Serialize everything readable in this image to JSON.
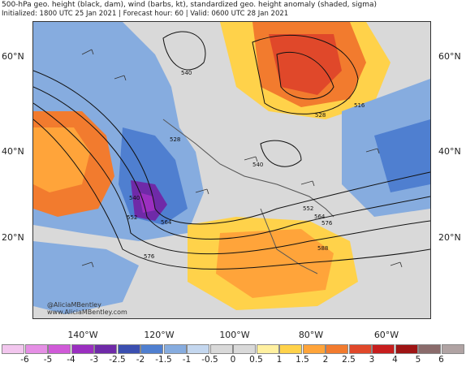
{
  "header": {
    "title": "500-hPa geo. height (black, dam), wind (barbs, kt), standardized geo. height anomaly (shaded, sigma)",
    "subtitle": "Initialized: 1800 UTC 25 Jan 2021 | Forecast hour: 60 | Valid: 0600 UTC 28 Jan 2021"
  },
  "map": {
    "lat_labels_left": [
      "60°N",
      "40°N",
      "20°N"
    ],
    "lat_labels_right": [
      "60°N",
      "40°N",
      "20°N"
    ],
    "lon_labels": [
      "140°W",
      "120°W",
      "100°W",
      "80°W",
      "60°W"
    ],
    "contour_labels": [
      "516",
      "528",
      "528",
      "540",
      "540",
      "552",
      "564",
      "576",
      "552",
      "564",
      "576",
      "588",
      "540"
    ],
    "credit_lines": [
      "@AliciaMBentley",
      "www.AliciaMBentley.com"
    ]
  },
  "colorbar": {
    "labels": [
      "-6",
      "-5",
      "-4",
      "-3",
      "-2.5",
      "-2",
      "-1.5",
      "-1",
      "-0.5",
      "0",
      "0.5",
      "1",
      "1.5",
      "2",
      "2.5",
      "3",
      "4",
      "5",
      "6"
    ],
    "colors": [
      "#f2c6ee",
      "#e58fe5",
      "#d05ad8",
      "#9b2fc0",
      "#6f2aa8",
      "#3b4fb0",
      "#4f7fd0",
      "#86acdf",
      "#c4d7ef",
      "#d9d9d9",
      "#d9d9d9",
      "#fff0a0",
      "#ffd24a",
      "#ffa43a",
      "#f27b2e",
      "#e0482a",
      "#c71e1e",
      "#9e1414",
      "#8a6b6b",
      "#b0a3a3"
    ]
  },
  "colors": {
    "land": "#f2efe6",
    "contour": "#111111"
  }
}
